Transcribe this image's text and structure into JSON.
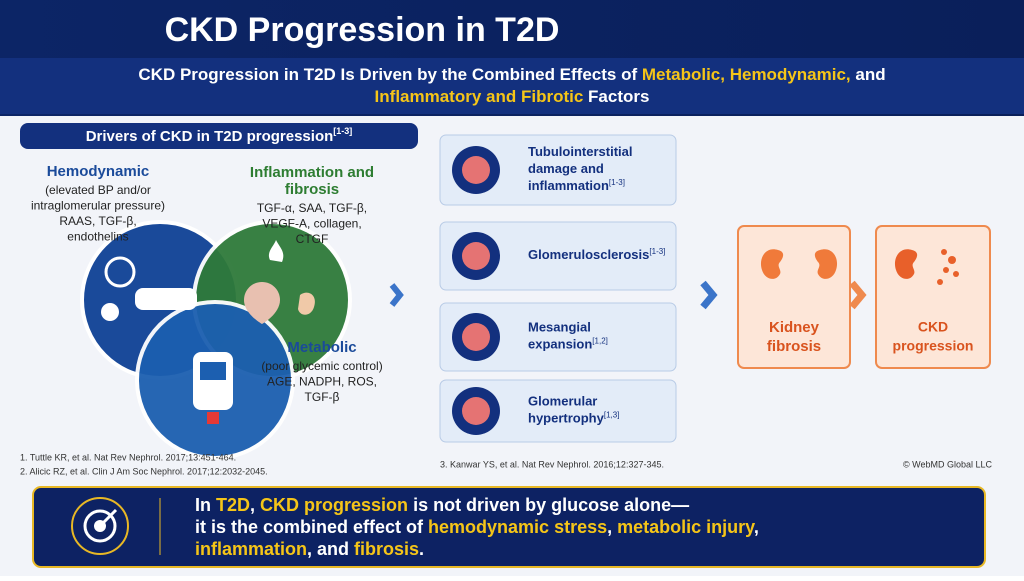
{
  "header": {
    "title": "CKD Progression in T2D",
    "subtitle": [
      [
        {
          "text": "CKD Progression in T2D Is Driven by the Combined Effects of ",
          "highlight": false
        },
        {
          "text": "Metabolic, Hemodynamic,",
          "highlight": true
        },
        {
          "text": " and",
          "highlight": false
        }
      ],
      [
        {
          "text": "Inflammatory and Fibrotic",
          "highlight": true
        },
        {
          "text": " Factors",
          "highlight": false
        }
      ]
    ]
  },
  "drivers": {
    "title": "Drivers of CKD in T2D progression",
    "title_ref": "[1-3]",
    "hemodynamic": {
      "heading": [
        "Hemodynamic"
      ],
      "lines": [
        "(elevated BP and/or",
        "intraglomerular pressure)",
        "RAAS, TGF-β,",
        "endothelins"
      ]
    },
    "inflammation": {
      "heading": [
        "Inflammation and",
        "fibrosis"
      ],
      "lines": [
        "TGF-α, SAA, TGF-β,",
        "VEGF-A, collagen,",
        "CTGF"
      ]
    },
    "metabolic": {
      "heading": [
        "Metabolic"
      ],
      "lines": [
        "(poor glycemic control)",
        "AGE, NADPH, ROS,",
        "TGF-β"
      ]
    }
  },
  "mechanisms": [
    {
      "lines": [
        "Tubulointerstitial",
        "damage and",
        "inflammation"
      ],
      "ref": "[1-3]"
    },
    {
      "lines": [
        "Glomerulosclerosis"
      ],
      "ref": "[1-3]"
    },
    {
      "lines": [
        "Mesangial",
        "expansion"
      ],
      "ref": "[1,2]"
    },
    {
      "lines": [
        "Glomerular",
        "hypertrophy"
      ],
      "ref": "[1,3]"
    }
  ],
  "outcomes": [
    [
      "Kidney",
      "fibrosis"
    ],
    [
      "CKD",
      "progression"
    ]
  ],
  "references": [
    "1. Tuttle KR, et al. Nat Rev Nephrol. 2017;13:451-464.",
    "2. Alicic RZ, et al. Clin J Am Soc Nephrol. 2017;12:2032-2045.",
    "3. Kanwar YS, et al. Nat Rev Nephrol. 2016;12:327-345."
  ],
  "copyright": "© WebMD Global LLC",
  "takeaway": [
    [
      {
        "text": "In ",
        "highlight": false
      },
      {
        "text": "T2D",
        "highlight": true
      },
      {
        "text": ", ",
        "highlight": false
      },
      {
        "text": "CKD progression",
        "highlight": true
      },
      {
        "text": " is not driven by glucose alone—",
        "highlight": false
      }
    ],
    [
      {
        "text": "it is the combined effect of ",
        "highlight": false
      },
      {
        "text": "hemodynamic stress",
        "highlight": true
      },
      {
        "text": ", ",
        "highlight": false
      },
      {
        "text": "metabolic injury",
        "highlight": true
      },
      {
        "text": ",",
        "highlight": false
      }
    ],
    [
      {
        "text": "inflammation",
        "highlight": true
      },
      {
        "text": ", and ",
        "highlight": false
      },
      {
        "text": "fibrosis",
        "highlight": true
      },
      {
        "text": ".",
        "highlight": false
      }
    ]
  ]
}
